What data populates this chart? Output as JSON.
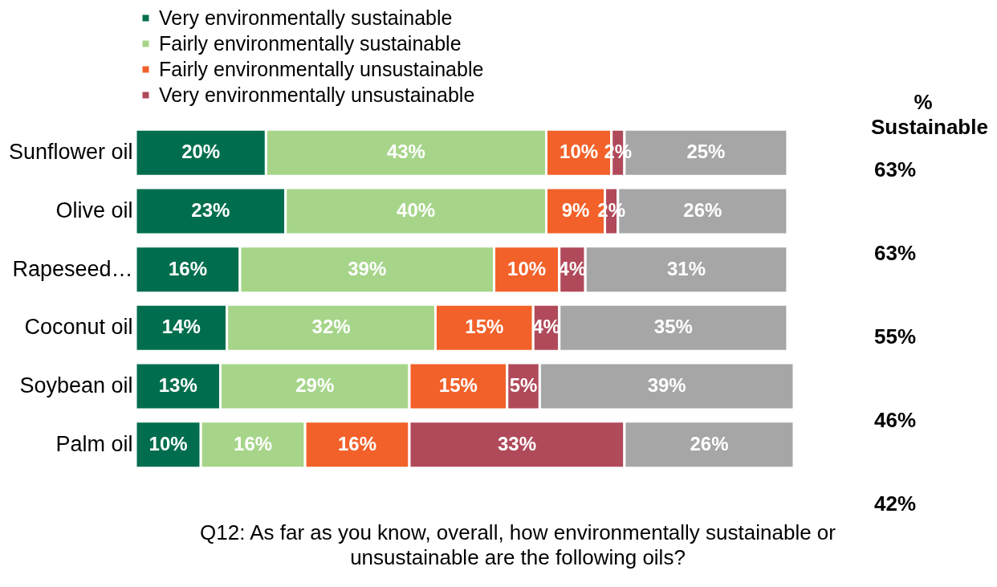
{
  "chart_data": {
    "type": "bar",
    "orientation": "horizontal",
    "stacked": true,
    "legend": "top",
    "categories": [
      "Sunflower oil",
      "Olive oil",
      "Rapeseed…",
      "Coconut oil",
      "Soybean oil",
      "Palm oil"
    ],
    "series": [
      {
        "name": "Very environmentally sustainable",
        "color": "#006e4e",
        "values": [
          20,
          23,
          16,
          14,
          13,
          10
        ],
        "value_labels": [
          "20%",
          "23%",
          "16%",
          "14%",
          "13%",
          "10%"
        ]
      },
      {
        "name": "Fairly environmentally sustainable",
        "color": "#a6d58a",
        "values": [
          43,
          40,
          39,
          32,
          29,
          16
        ],
        "value_labels": [
          "43%",
          "40%",
          "39%",
          "32%",
          "29%",
          "16%"
        ]
      },
      {
        "name": "Fairly environmentally unsustainable",
        "color": "#f26129",
        "values": [
          10,
          9,
          10,
          15,
          15,
          16
        ],
        "value_labels": [
          "10%",
          "9%",
          "10%",
          "15%",
          "15%",
          "16%"
        ]
      },
      {
        "name": "Very environmentally unsustainable",
        "color": "#b04a5a",
        "values": [
          2,
          2,
          4,
          4,
          5,
          33
        ],
        "value_labels": [
          "2%",
          "2%",
          "4%",
          "4%",
          "5%",
          "33%"
        ]
      },
      {
        "color": "#a6a6a6",
        "values": [
          25,
          26,
          31,
          35,
          39,
          26
        ],
        "value_labels": [
          "25%",
          "26%",
          "31%",
          "35%",
          "39%",
          "26%"
        ]
      }
    ],
    "annotations": [
      "% Sustainable",
      "63%",
      "63%",
      "55%",
      "46%",
      "42%",
      "Q12: As far as you know, overall, how environmentally sustainable or unsustainable are the following oils?"
    ]
  }
}
